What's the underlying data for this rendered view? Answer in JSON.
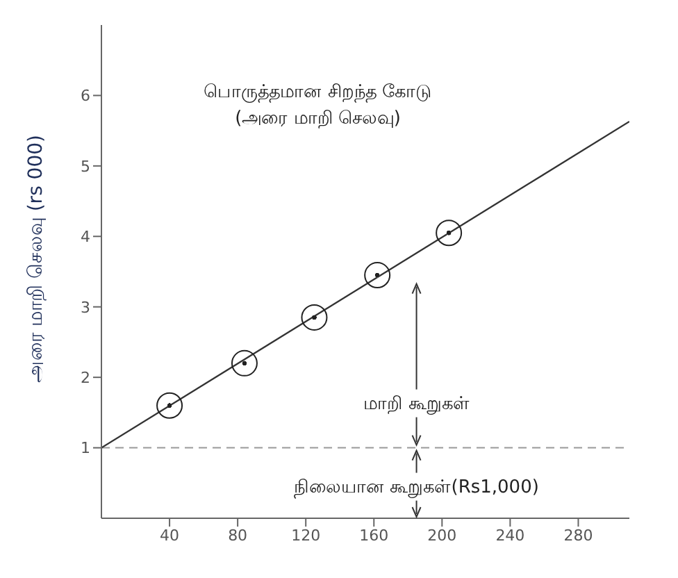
{
  "chart_data": {
    "type": "scatter",
    "ylabel": "அரை மாறி செலவு (rs 000)",
    "xlim": [
      0,
      310
    ],
    "ylim": [
      0,
      7
    ],
    "xticks": [
      40,
      80,
      120,
      160,
      200,
      240,
      280
    ],
    "yticks": [
      1,
      2,
      3,
      4,
      5,
      6
    ],
    "grid": false,
    "legend": false,
    "series": [
      {
        "color": "#222222",
        "marker": "circle",
        "x": [
          40,
          84,
          125,
          162,
          204
        ],
        "values": [
          1.6,
          2.2,
          2.85,
          3.45,
          4.05
        ]
      },
      {
        "type": "line",
        "color": "#333333",
        "marker": "none",
        "line_style": "solid",
        "x": [
          0,
          310
        ],
        "values": [
          1,
          5.63
        ]
      }
    ],
    "ref_lines": [
      {
        "axis": "y",
        "value": 1,
        "color": "#999999",
        "line_style": "dashed"
      }
    ],
    "annotations": [
      "பொருத்தமான சிறந்த கோடு\n(அரை மாறி செலவு)",
      {
        "text": "மாறி கூறுகள்",
        "x": 185,
        "y": 1
      },
      {
        "text": "நிலையான கூறுகள்(Rs1,000)",
        "x": 185,
        "y": 1
      }
    ]
  }
}
